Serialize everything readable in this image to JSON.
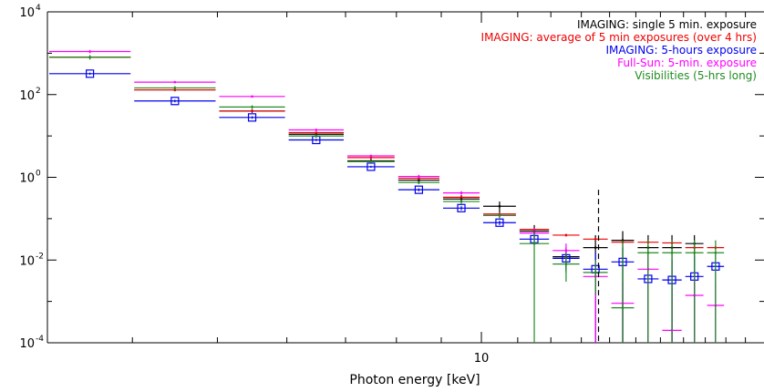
{
  "chart_data": {
    "type": "scatter",
    "xscale": "log",
    "yscale": "log",
    "xlabel": "Photon energy [keV]",
    "ylabel": "",
    "xlim": [
      3.2,
      21
    ],
    "ylim": [
      0.0001,
      10000
    ],
    "x_tick_labels": [
      {
        "value": 10,
        "label": "10"
      }
    ],
    "y_tick_labels": [
      {
        "exp": 4,
        "label": "10",
        "sup": "4"
      },
      {
        "exp": 2,
        "label": "10",
        "sup": "2"
      },
      {
        "exp": 0,
        "label": "10",
        "sup": "0"
      },
      {
        "exp": -2,
        "label": "10",
        "sup": "-2"
      },
      {
        "exp": -4,
        "label": "10",
        "sup": "-4"
      }
    ],
    "vertical_line": {
      "x": 13.6,
      "style": "dashed",
      "color": "#000000"
    },
    "legend_position": "top-right",
    "series": [
      {
        "name": "IMAGING: single 5 min. exposure",
        "color": "#000000",
        "marker": "dot",
        "points": [
          {
            "x0": 3.2,
            "x1": 4.0,
            "y": 800,
            "lo": 760,
            "hi": 840
          },
          {
            "x0": 4.0,
            "x1": 5.0,
            "y": 130,
            "lo": 120,
            "hi": 140
          },
          {
            "x0": 5.0,
            "x1": 6.0,
            "y": 40,
            "lo": 36,
            "hi": 44
          },
          {
            "x0": 6.0,
            "x1": 7.0,
            "y": 11,
            "lo": 10,
            "hi": 12
          },
          {
            "x0": 7.0,
            "x1": 8.0,
            "y": 2.5,
            "lo": 2.2,
            "hi": 2.8
          },
          {
            "x0": 8.0,
            "x1": 9.0,
            "y": 0.85,
            "lo": 0.7,
            "hi": 1.0
          },
          {
            "x0": 9.0,
            "x1": 10.0,
            "y": 0.3,
            "lo": 0.25,
            "hi": 0.37
          },
          {
            "x0": 10.0,
            "x1": 11.0,
            "y": 0.2,
            "lo": 0.14,
            "hi": 0.26
          },
          {
            "x0": 11.0,
            "x1": 12.0,
            "y": 0.05,
            "lo": 0.03,
            "hi": 0.07
          },
          {
            "x0": 12.0,
            "x1": 13.0,
            "y": 0.012,
            "lo": 0.005,
            "hi": 0.02
          },
          {
            "x0": 13.0,
            "x1": 14.0,
            "y": 0.02,
            "lo": 0.0001,
            "hi": 0.04
          },
          {
            "x0": 14.0,
            "x1": 15.0,
            "y": 0.03,
            "lo": 0.0001,
            "hi": 0.05
          },
          {
            "x0": 15.0,
            "x1": 16.0,
            "y": 0.02,
            "lo": 0.0001,
            "hi": 0.04
          },
          {
            "x0": 16.0,
            "x1": 17.0,
            "y": 0.02,
            "lo": 0.0001,
            "hi": 0.04
          },
          {
            "x0": 17.0,
            "x1": 18.0,
            "y": 0.025,
            "lo": 0.0001,
            "hi": 0.04
          }
        ]
      },
      {
        "name": "IMAGING: average of 5 min exposures (over 4 hrs)",
        "color": "#ee0000",
        "marker": "dot",
        "points": [
          {
            "x0": 3.2,
            "x1": 4.0,
            "y": 800,
            "lo": 790,
            "hi": 810
          },
          {
            "x0": 4.0,
            "x1": 5.0,
            "y": 130,
            "lo": 128,
            "hi": 132
          },
          {
            "x0": 5.0,
            "x1": 6.0,
            "y": 40,
            "lo": 39,
            "hi": 41
          },
          {
            "x0": 6.0,
            "x1": 7.0,
            "y": 12,
            "lo": 11.5,
            "hi": 12.5
          },
          {
            "x0": 7.0,
            "x1": 8.0,
            "y": 3.0,
            "lo": 2.9,
            "hi": 3.1
          },
          {
            "x0": 8.0,
            "x1": 9.0,
            "y": 0.95,
            "lo": 0.9,
            "hi": 1.0
          },
          {
            "x0": 9.0,
            "x1": 10.0,
            "y": 0.33,
            "lo": 0.31,
            "hi": 0.35
          },
          {
            "x0": 10.0,
            "x1": 11.0,
            "y": 0.13,
            "lo": 0.12,
            "hi": 0.14
          },
          {
            "x0": 11.0,
            "x1": 12.0,
            "y": 0.055,
            "lo": 0.05,
            "hi": 0.06
          },
          {
            "x0": 12.0,
            "x1": 13.0,
            "y": 0.04,
            "lo": 0.037,
            "hi": 0.043
          },
          {
            "x0": 13.0,
            "x1": 14.0,
            "y": 0.032,
            "lo": 0.03,
            "hi": 0.034
          },
          {
            "x0": 14.0,
            "x1": 15.0,
            "y": 0.027,
            "lo": 0.025,
            "hi": 0.029
          },
          {
            "x0": 15.0,
            "x1": 16.0,
            "y": 0.027,
            "lo": 0.025,
            "hi": 0.029
          },
          {
            "x0": 16.0,
            "x1": 17.0,
            "y": 0.026,
            "lo": 0.024,
            "hi": 0.028
          },
          {
            "x0": 17.0,
            "x1": 18.0,
            "y": 0.02,
            "lo": 0.018,
            "hi": 0.022
          },
          {
            "x0": 18.0,
            "x1": 19.0,
            "y": 0.02,
            "lo": 0.018,
            "hi": 0.022
          }
        ]
      },
      {
        "name": "IMAGING: 5-hours exposure",
        "color": "#0000ee",
        "marker": "square",
        "points": [
          {
            "x0": 3.2,
            "x1": 4.0,
            "y": 320,
            "lo": 300,
            "hi": 340
          },
          {
            "x0": 4.0,
            "x1": 5.0,
            "y": 70,
            "lo": 65,
            "hi": 75
          },
          {
            "x0": 5.0,
            "x1": 6.0,
            "y": 28,
            "lo": 26,
            "hi": 30
          },
          {
            "x0": 6.0,
            "x1": 7.0,
            "y": 8,
            "lo": 7.5,
            "hi": 8.5
          },
          {
            "x0": 7.0,
            "x1": 8.0,
            "y": 1.8,
            "lo": 1.7,
            "hi": 1.9
          },
          {
            "x0": 8.0,
            "x1": 9.0,
            "y": 0.5,
            "lo": 0.46,
            "hi": 0.54
          },
          {
            "x0": 9.0,
            "x1": 10.0,
            "y": 0.18,
            "lo": 0.16,
            "hi": 0.2
          },
          {
            "x0": 10.0,
            "x1": 11.0,
            "y": 0.08,
            "lo": 0.07,
            "hi": 0.09
          },
          {
            "x0": 11.0,
            "x1": 12.0,
            "y": 0.032,
            "lo": 0.025,
            "hi": 0.04
          },
          {
            "x0": 12.0,
            "x1": 13.0,
            "y": 0.011,
            "lo": 0.006,
            "hi": 0.018
          },
          {
            "x0": 13.0,
            "x1": 14.0,
            "y": 0.006,
            "lo": 0.0001,
            "hi": 0.015
          },
          {
            "x0": 14.0,
            "x1": 15.0,
            "y": 0.009,
            "lo": 0.0001,
            "hi": 0.02
          },
          {
            "x0": 15.0,
            "x1": 16.0,
            "y": 0.0035,
            "lo": 0.0001,
            "hi": 0.01
          },
          {
            "x0": 16.0,
            "x1": 17.0,
            "y": 0.0033,
            "lo": 0.0001,
            "hi": 0.01
          },
          {
            "x0": 17.0,
            "x1": 18.0,
            "y": 0.004,
            "lo": 0.0001,
            "hi": 0.012
          },
          {
            "x0": 18.0,
            "x1": 19.0,
            "y": 0.007,
            "lo": 0.0001,
            "hi": 0.015
          }
        ]
      },
      {
        "name": "Full-Sun: 5-min. exposure",
        "color": "#ff00ff",
        "marker": "dot",
        "points": [
          {
            "x0": 3.2,
            "x1": 4.0,
            "y": 1100,
            "lo": 1000,
            "hi": 1200
          },
          {
            "x0": 4.0,
            "x1": 5.0,
            "y": 200,
            "lo": 190,
            "hi": 210
          },
          {
            "x0": 5.0,
            "x1": 6.0,
            "y": 90,
            "lo": 85,
            "hi": 95
          },
          {
            "x0": 6.0,
            "x1": 7.0,
            "y": 14,
            "lo": 13,
            "hi": 15
          },
          {
            "x0": 7.0,
            "x1": 8.0,
            "y": 3.3,
            "lo": 3.1,
            "hi": 3.5
          },
          {
            "x0": 8.0,
            "x1": 9.0,
            "y": 1.05,
            "lo": 0.95,
            "hi": 1.15
          },
          {
            "x0": 9.0,
            "x1": 10.0,
            "y": 0.42,
            "lo": 0.38,
            "hi": 0.46
          },
          {
            "x0": 10.0,
            "x1": 11.0,
            "y": 0.12,
            "lo": 0.1,
            "hi": 0.14
          },
          {
            "x0": 11.0,
            "x1": 12.0,
            "y": 0.045,
            "lo": 0.03,
            "hi": 0.06
          },
          {
            "x0": 12.0,
            "x1": 13.0,
            "y": 0.017,
            "lo": 0.008,
            "hi": 0.025
          },
          {
            "x0": 13.0,
            "x1": 14.0,
            "y": 0.004,
            "lo": 0.0001,
            "hi": 0.01
          },
          {
            "x0": 14.0,
            "x1": 15.0,
            "y": 0.0009,
            "lo": 0.0001,
            "hi": 0.003
          },
          {
            "x0": 15.0,
            "x1": 16.0,
            "y": 0.006,
            "lo": 0.0001,
            "hi": 0.015
          },
          {
            "x0": 16.0,
            "x1": 17.0,
            "y": 0.0002,
            "lo": 0.0001,
            "hi": 0.002
          },
          {
            "x0": 17.0,
            "x1": 18.0,
            "y": 0.0014,
            "lo": 0.0001,
            "hi": 0.005
          },
          {
            "x0": 18.0,
            "x1": 19.0,
            "y": 0.0008,
            "lo": 0.0001,
            "hi": 0.003
          }
        ]
      },
      {
        "name": "Visibilities (5-hrs long)",
        "color": "#228b22",
        "marker": "dot",
        "points": [
          {
            "x0": 3.2,
            "x1": 4.0,
            "y": 800,
            "lo": 700,
            "hi": 900
          },
          {
            "x0": 4.0,
            "x1": 5.0,
            "y": 145,
            "lo": 130,
            "hi": 160
          },
          {
            "x0": 5.0,
            "x1": 6.0,
            "y": 50,
            "lo": 45,
            "hi": 55
          },
          {
            "x0": 6.0,
            "x1": 7.0,
            "y": 10,
            "lo": 9,
            "hi": 11
          },
          {
            "x0": 7.0,
            "x1": 8.0,
            "y": 2.4,
            "lo": 2.2,
            "hi": 2.6
          },
          {
            "x0": 8.0,
            "x1": 9.0,
            "y": 0.75,
            "lo": 0.68,
            "hi": 0.82
          },
          {
            "x0": 9.0,
            "x1": 10.0,
            "y": 0.26,
            "lo": 0.23,
            "hi": 0.29
          },
          {
            "x0": 10.0,
            "x1": 11.0,
            "y": 0.12,
            "lo": 0.1,
            "hi": 0.14
          },
          {
            "x0": 11.0,
            "x1": 12.0,
            "y": 0.025,
            "lo": 0.0001,
            "hi": 0.05
          },
          {
            "x0": 12.0,
            "x1": 13.0,
            "y": 0.008,
            "lo": 0.003,
            "hi": 0.015
          },
          {
            "x0": 13.0,
            "x1": 14.0,
            "y": 0.005,
            "lo": 0.0015,
            "hi": 0.01
          },
          {
            "x0": 14.0,
            "x1": 15.0,
            "y": 0.0007,
            "lo": 0.0001,
            "hi": 0.03
          },
          {
            "x0": 15.0,
            "x1": 16.0,
            "y": 0.015,
            "lo": 0.0001,
            "hi": 0.03
          },
          {
            "x0": 16.0,
            "x1": 17.0,
            "y": 0.015,
            "lo": 0.0001,
            "hi": 0.03
          },
          {
            "x0": 17.0,
            "x1": 18.0,
            "y": 0.015,
            "lo": 0.0001,
            "hi": 0.03
          },
          {
            "x0": 18.0,
            "x1": 19.0,
            "y": 0.015,
            "lo": 0.0001,
            "hi": 0.03
          }
        ]
      }
    ]
  }
}
